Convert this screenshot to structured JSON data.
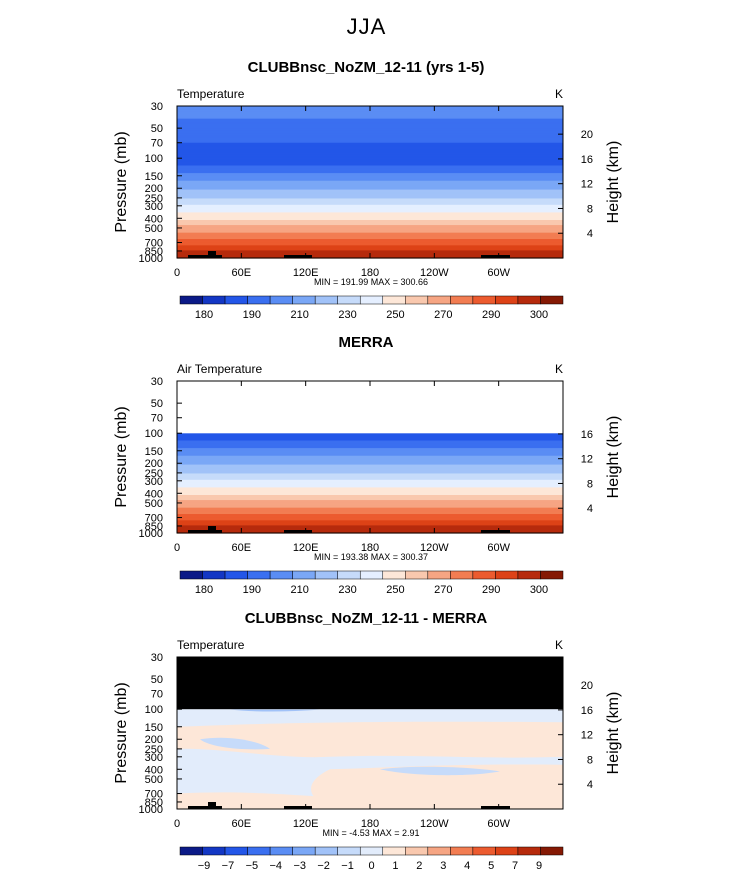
{
  "main_title": "JJA",
  "colors": {
    "levels_abs": [
      "#0b1a87",
      "#1337c4",
      "#2356e8",
      "#3a6ff0",
      "#5a8df4",
      "#7aa7f6",
      "#a1c2f8",
      "#c6dbfa",
      "#e5efff",
      "#fde7d8",
      "#f9c8ae",
      "#f6a583",
      "#f27d52",
      "#ec5b2f",
      "#dd4217",
      "#b62a0c",
      "#851904"
    ],
    "levels_diff": [
      "#0b1a87",
      "#1337c4",
      "#2356e8",
      "#3a6ff0",
      "#5a8df4",
      "#7aa7f6",
      "#a1c2f8",
      "#c6dbfa",
      "#e2ecfb",
      "#fde7d8",
      "#f9c8ae",
      "#f6a583",
      "#f27d52",
      "#ec5b2f",
      "#dd4217",
      "#b62a0c",
      "#851904"
    ]
  },
  "chart_data": [
    {
      "type": "heatmap",
      "title": "CLUBBnsc_NoZM_12-11 (yrs 1-5)",
      "left_label": "Temperature",
      "units": "K",
      "ylabel": "Pressure (mb)",
      "y2label": "Height (km)",
      "pressure_ticks": [
        "30",
        "50",
        "70",
        "100",
        "150",
        "200",
        "250",
        "300",
        "400",
        "500",
        "700",
        "850",
        "1000"
      ],
      "height_ticks": [
        "20",
        "16",
        "12",
        "8",
        "4"
      ],
      "x_ticks": [
        "0",
        "60E",
        "120E",
        "180",
        "120W",
        "60W"
      ],
      "stats": "MIN = 191.99   MAX = 300.66",
      "colorbar_labels": [
        "180",
        "190",
        "210",
        "230",
        "250",
        "270",
        "290",
        "300"
      ],
      "profile": [
        {
          "p": 30,
          "v": 207
        },
        {
          "p": 45,
          "v": 205
        },
        {
          "p": 60,
          "v": 200
        },
        {
          "p": 80,
          "v": 196
        },
        {
          "p": 100,
          "v": 194
        },
        {
          "p": 120,
          "v": 198
        },
        {
          "p": 150,
          "v": 208
        },
        {
          "p": 200,
          "v": 220
        },
        {
          "p": 250,
          "v": 228
        },
        {
          "p": 300,
          "v": 238
        },
        {
          "p": 400,
          "v": 250
        },
        {
          "p": 500,
          "v": 262
        },
        {
          "p": 700,
          "v": 278
        },
        {
          "p": 850,
          "v": 290
        },
        {
          "p": 1000,
          "v": 298
        }
      ],
      "masked_top": 0
    },
    {
      "type": "heatmap",
      "title": "MERRA",
      "left_label": "Air Temperature",
      "units": "K",
      "ylabel": "Pressure (mb)",
      "y2label": "Height (km)",
      "pressure_ticks": [
        "30",
        "50",
        "70",
        "100",
        "150",
        "200",
        "250",
        "300",
        "400",
        "500",
        "700",
        "850",
        "1000"
      ],
      "height_ticks": [
        "16",
        "12",
        "8",
        "4"
      ],
      "x_ticks": [
        "0",
        "60E",
        "120E",
        "180",
        "120W",
        "60W"
      ],
      "stats": "MIN = 193.38   MAX = 300.37",
      "colorbar_labels": [
        "180",
        "190",
        "210",
        "230",
        "250",
        "270",
        "290",
        "300"
      ],
      "profile": [
        {
          "p": 100,
          "v": 194
        },
        {
          "p": 120,
          "v": 198
        },
        {
          "p": 150,
          "v": 208
        },
        {
          "p": 200,
          "v": 220
        },
        {
          "p": 250,
          "v": 228
        },
        {
          "p": 300,
          "v": 238
        },
        {
          "p": 400,
          "v": 250
        },
        {
          "p": 500,
          "v": 262
        },
        {
          "p": 700,
          "v": 278
        },
        {
          "p": 850,
          "v": 290
        },
        {
          "p": 1000,
          "v": 298
        }
      ],
      "masked_top": 100
    },
    {
      "type": "heatmap",
      "title": "CLUBBnsc_NoZM_12-11 - MERRA",
      "left_label": "Temperature",
      "units": "K",
      "ylabel": "Pressure (mb)",
      "y2label": "Height (km)",
      "pressure_ticks": [
        "30",
        "50",
        "70",
        "100",
        "150",
        "200",
        "250",
        "300",
        "400",
        "500",
        "700",
        "850",
        "1000"
      ],
      "height_ticks": [
        "20",
        "16",
        "12",
        "8",
        "4"
      ],
      "x_ticks": [
        "0",
        "60E",
        "120E",
        "180",
        "120W",
        "60W"
      ],
      "stats": "MIN =   -4.53   MAX =    2.91",
      "colorbar_labels": [
        "−9",
        "−7",
        "−5",
        "−4",
        "−3",
        "−2",
        "−1",
        "0",
        "1",
        "2",
        "3",
        "4",
        "5",
        "7",
        "9"
      ],
      "masked_top": 100
    }
  ]
}
